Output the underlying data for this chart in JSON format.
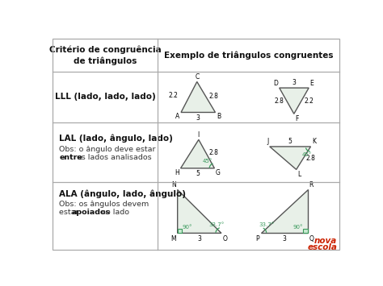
{
  "title_col1": "Critério de congruência\nde triângulos",
  "title_col2": "Exemplo de triângulos congruentes",
  "row1_label": "LLL (lado, lado, lado)",
  "row2_label": "LAL (lado, ângulo, lado)",
  "row2_obs1": "Obs: o ângulo deve estar",
  "row2_obs2_bold": "entre",
  "row2_obs2_rest": " os lados analisados",
  "row3_label": "ALA (ângulo, lado, ângulo)",
  "row3_obs1": "Obs: os ângulos devem",
  "row3_obs2_pre": "estar ",
  "row3_obs2_bold": "apoiados",
  "row3_obs2_rest": " no lado",
  "bg_color": "#ffffff",
  "fill_color": "#e8f0e8",
  "angle_color": "#3a9a5c",
  "line_color": "#555555",
  "text_color": "#333333",
  "bold_color": "#111111",
  "grid_color": "#aaaaaa",
  "nova_color": "#cc2200"
}
